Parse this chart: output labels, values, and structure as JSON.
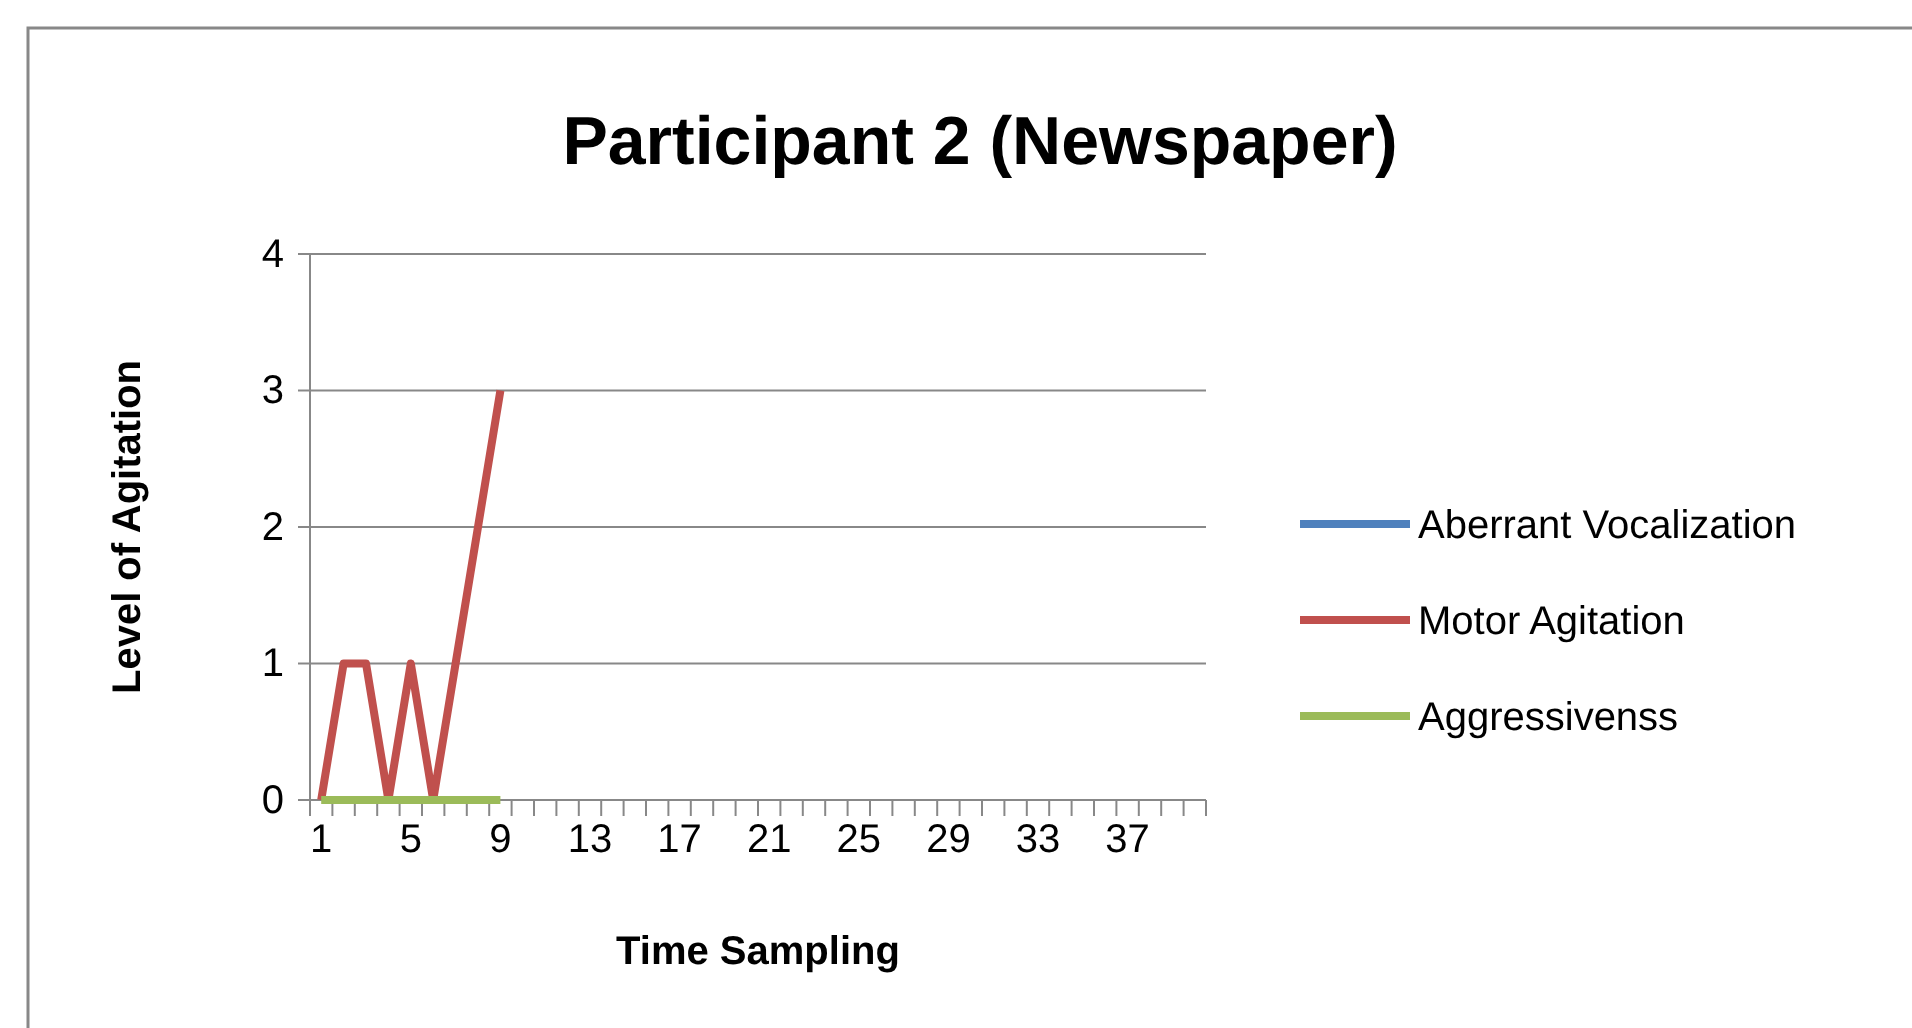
{
  "chart_data": {
    "type": "line",
    "title": "Participant 2 (Newspaper)",
    "xlabel": "Time Sampling",
    "ylabel": "Level of Agitation",
    "categories": [
      "1",
      null,
      null,
      null,
      "5",
      null,
      null,
      null,
      "9",
      null,
      null,
      null,
      "13",
      null,
      null,
      null,
      "17",
      null,
      null,
      null,
      "21",
      null,
      null,
      null,
      "25",
      null,
      null,
      null,
      "29",
      null,
      null,
      null,
      "33",
      null,
      null,
      null,
      "37",
      null,
      null,
      null
    ],
    "series": [
      {
        "name": "Aberrant Vocalization",
        "color": "#4f81bd",
        "values": [
          null,
          null,
          null,
          null,
          null,
          null,
          null,
          null,
          null,
          null,
          null,
          null,
          null,
          null,
          null,
          null,
          null,
          null,
          null,
          null,
          null,
          null,
          null,
          null,
          null,
          null,
          null,
          null,
          null,
          null,
          null,
          null,
          null,
          null,
          null,
          null,
          null,
          null,
          null,
          null
        ]
      },
      {
        "name": "Motor Agitation",
        "color": "#c0504d",
        "values": [
          0,
          1,
          1,
          0,
          1,
          0,
          1,
          2,
          3,
          null,
          null,
          null,
          null,
          null,
          null,
          null,
          null,
          null,
          null,
          null,
          null,
          null,
          null,
          null,
          null,
          null,
          null,
          null,
          null,
          null,
          null,
          null,
          null,
          null,
          null,
          null,
          null,
          null,
          null,
          null
        ]
      },
      {
        "name": "Aggressivenss",
        "color": "#9bbb59",
        "values": [
          0,
          0,
          0,
          0,
          0,
          0,
          0,
          0,
          0,
          null,
          null,
          null,
          null,
          null,
          null,
          null,
          null,
          null,
          null,
          null,
          null,
          null,
          null,
          null,
          null,
          null,
          null,
          null,
          null,
          null,
          null,
          null,
          null,
          null,
          null,
          null,
          null,
          null,
          null,
          null
        ]
      }
    ],
    "ylim": [
      0,
      4
    ],
    "yticks": [
      0,
      1,
      2,
      3,
      4
    ],
    "grid": "y",
    "legend": "right",
    "marker": "none",
    "line_style": "solid"
  }
}
